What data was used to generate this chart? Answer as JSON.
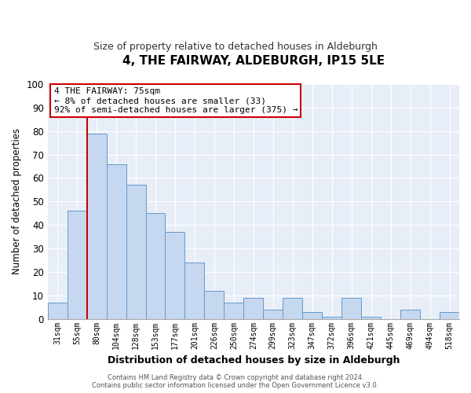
{
  "title": "4, THE FAIRWAY, ALDEBURGH, IP15 5LE",
  "subtitle": "Size of property relative to detached houses in Aldeburgh",
  "xlabel": "Distribution of detached houses by size in Aldeburgh",
  "ylabel": "Number of detached properties",
  "bar_labels": [
    "31sqm",
    "55sqm",
    "80sqm",
    "104sqm",
    "128sqm",
    "153sqm",
    "177sqm",
    "201sqm",
    "226sqm",
    "250sqm",
    "274sqm",
    "299sqm",
    "323sqm",
    "347sqm",
    "372sqm",
    "396sqm",
    "421sqm",
    "445sqm",
    "469sqm",
    "494sqm",
    "518sqm"
  ],
  "bar_values": [
    7,
    46,
    79,
    66,
    57,
    45,
    37,
    24,
    12,
    7,
    9,
    4,
    9,
    3,
    1,
    9,
    1,
    0,
    4,
    0,
    3
  ],
  "bar_color": "#c5d8f0",
  "bar_edge_color": "#6699cc",
  "background_color": "#e8eef8",
  "plot_bg_color": "#e8eef8",
  "grid_color": "#ffffff",
  "ylim": [
    0,
    100
  ],
  "yticks": [
    0,
    10,
    20,
    30,
    40,
    50,
    60,
    70,
    80,
    90,
    100
  ],
  "vline_color": "#cc0000",
  "annotation_title": "4 THE FAIRWAY: 75sqm",
  "annotation_line1": "← 8% of detached houses are smaller (33)",
  "annotation_line2": "92% of semi-detached houses are larger (375) →",
  "annotation_box_color": "#cc0000",
  "footer_line1": "Contains HM Land Registry data © Crown copyright and database right 2024.",
  "footer_line2": "Contains public sector information licensed under the Open Government Licence v3.0."
}
